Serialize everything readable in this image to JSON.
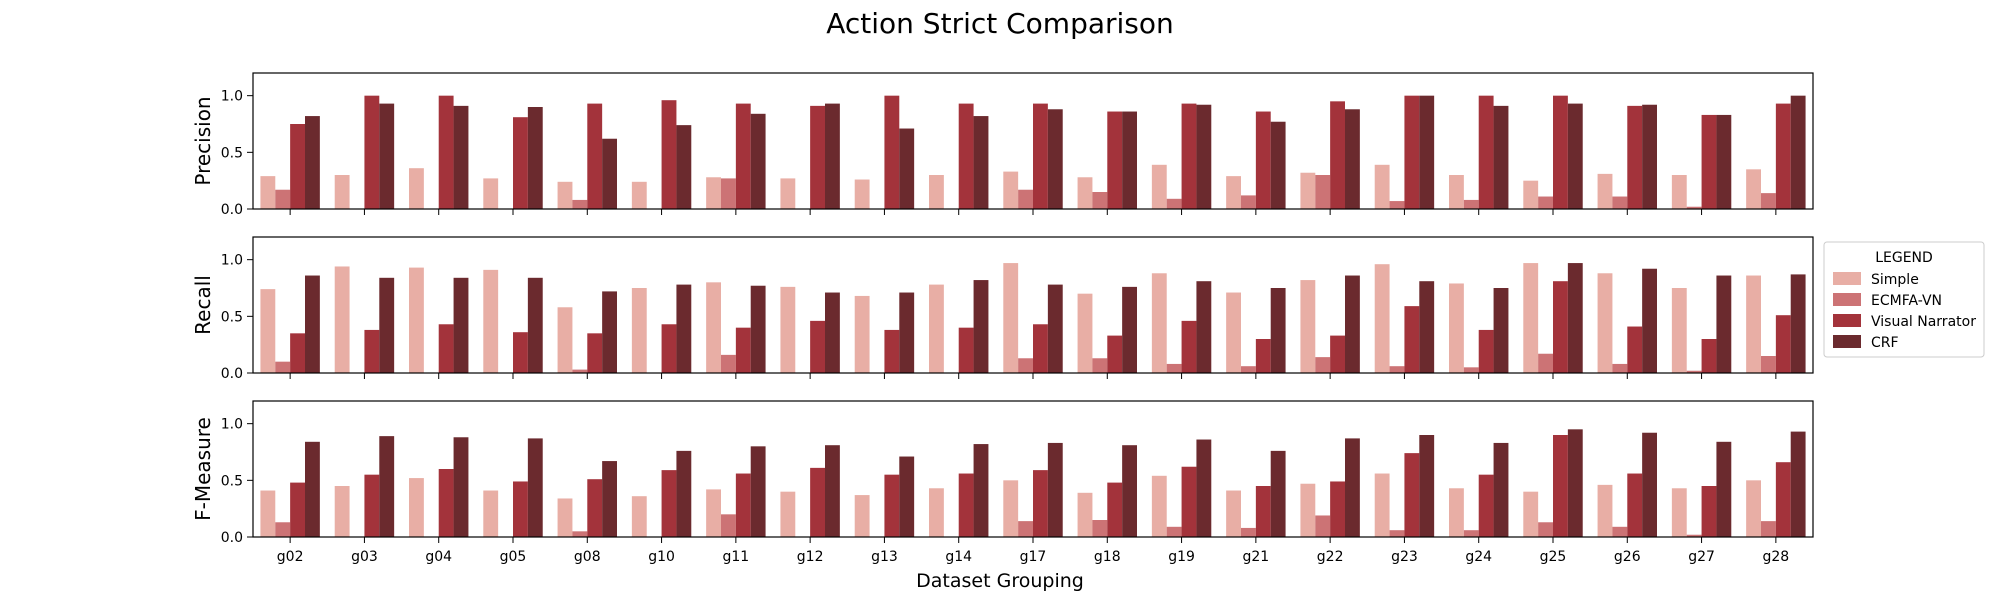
{
  "chart_data": {
    "type": "bar",
    "title": "Action Strict Comparison",
    "xlabel": "Dataset Grouping",
    "categories": [
      "g02",
      "g03",
      "g04",
      "g05",
      "g08",
      "g10",
      "g11",
      "g12",
      "g13",
      "g14",
      "g17",
      "g18",
      "g19",
      "g21",
      "g22",
      "g23",
      "g24",
      "g25",
      "g26",
      "g27",
      "g28"
    ],
    "legend": {
      "title": "LEGEND",
      "placement": "right",
      "entries": [
        "Simple",
        "ECMFA-VN",
        "Visual Narrator",
        "CRF"
      ]
    },
    "colors": {
      "Simple": "#e8aea5",
      "ECMFA-VN": "#cc7375",
      "Visual Narrator": "#a3333b",
      "CRF": "#6b2a2e"
    },
    "subplots": [
      {
        "ylabel": "Precision",
        "ylim": [
          0,
          1.2
        ],
        "yticks": [
          0.0,
          0.5,
          1.0
        ],
        "series": [
          {
            "name": "Simple",
            "values": [
              0.29,
              0.3,
              0.36,
              0.27,
              0.24,
              0.24,
              0.28,
              0.27,
              0.26,
              0.3,
              0.33,
              0.28,
              0.39,
              0.29,
              0.32,
              0.39,
              0.3,
              0.25,
              0.31,
              0.3,
              0.35
            ]
          },
          {
            "name": "ECMFA-VN",
            "values": [
              0.17,
              0,
              0,
              0,
              0.08,
              0,
              0.27,
              0,
              0,
              0,
              0.17,
              0.15,
              0.09,
              0.12,
              0.3,
              0.07,
              0.08,
              0.11,
              0.11,
              0.02,
              0.14
            ]
          },
          {
            "name": "Visual Narrator",
            "values": [
              0.75,
              1.0,
              1.0,
              0.81,
              0.93,
              0.96,
              0.93,
              0.91,
              1.0,
              0.93,
              0.93,
              0.86,
              0.93,
              0.86,
              0.95,
              1.0,
              1.0,
              1.0,
              0.91,
              0.83,
              0.93
            ]
          },
          {
            "name": "CRF",
            "values": [
              0.82,
              0.93,
              0.91,
              0.9,
              0.62,
              0.74,
              0.84,
              0.93,
              0.71,
              0.82,
              0.88,
              0.86,
              0.92,
              0.77,
              0.88,
              1.0,
              0.91,
              0.93,
              0.92,
              0.83,
              1.0
            ]
          }
        ]
      },
      {
        "ylabel": "Recall",
        "ylim": [
          0,
          1.2
        ],
        "yticks": [
          0.0,
          0.5,
          1.0
        ],
        "series": [
          {
            "name": "Simple",
            "values": [
              0.74,
              0.94,
              0.93,
              0.91,
              0.58,
              0.75,
              0.8,
              0.76,
              0.68,
              0.78,
              0.97,
              0.7,
              0.88,
              0.71,
              0.82,
              0.96,
              0.79,
              0.97,
              0.88,
              0.75,
              0.86
            ]
          },
          {
            "name": "ECMFA-VN",
            "values": [
              0.1,
              0,
              0,
              0,
              0.03,
              0,
              0.16,
              0,
              0,
              0,
              0.13,
              0.13,
              0.08,
              0.06,
              0.14,
              0.06,
              0.05,
              0.17,
              0.08,
              0.02,
              0.15
            ]
          },
          {
            "name": "Visual Narrator",
            "values": [
              0.35,
              0.38,
              0.43,
              0.36,
              0.35,
              0.43,
              0.4,
              0.46,
              0.38,
              0.4,
              0.43,
              0.33,
              0.46,
              0.3,
              0.33,
              0.59,
              0.38,
              0.81,
              0.41,
              0.3,
              0.51
            ]
          },
          {
            "name": "CRF",
            "values": [
              0.86,
              0.84,
              0.84,
              0.84,
              0.72,
              0.78,
              0.77,
              0.71,
              0.71,
              0.82,
              0.78,
              0.76,
              0.81,
              0.75,
              0.86,
              0.81,
              0.75,
              0.97,
              0.92,
              0.86,
              0.87
            ]
          }
        ]
      },
      {
        "ylabel": "F-Measure",
        "ylim": [
          0,
          1.2
        ],
        "yticks": [
          0.0,
          0.5,
          1.0
        ],
        "series": [
          {
            "name": "Simple",
            "values": [
              0.41,
              0.45,
              0.52,
              0.41,
              0.34,
              0.36,
              0.42,
              0.4,
              0.37,
              0.43,
              0.5,
              0.39,
              0.54,
              0.41,
              0.47,
              0.56,
              0.43,
              0.4,
              0.46,
              0.43,
              0.5
            ]
          },
          {
            "name": "ECMFA-VN",
            "values": [
              0.13,
              0,
              0,
              0,
              0.05,
              0,
              0.2,
              0,
              0,
              0,
              0.14,
              0.15,
              0.09,
              0.08,
              0.19,
              0.06,
              0.06,
              0.13,
              0.09,
              0.02,
              0.14
            ]
          },
          {
            "name": "Visual Narrator",
            "values": [
              0.48,
              0.55,
              0.6,
              0.49,
              0.51,
              0.59,
              0.56,
              0.61,
              0.55,
              0.56,
              0.59,
              0.48,
              0.62,
              0.45,
              0.49,
              0.74,
              0.55,
              0.9,
              0.56,
              0.45,
              0.66
            ]
          },
          {
            "name": "CRF",
            "values": [
              0.84,
              0.89,
              0.88,
              0.87,
              0.67,
              0.76,
              0.8,
              0.81,
              0.71,
              0.82,
              0.83,
              0.81,
              0.86,
              0.76,
              0.87,
              0.9,
              0.83,
              0.95,
              0.92,
              0.84,
              0.93
            ]
          }
        ]
      }
    ]
  }
}
